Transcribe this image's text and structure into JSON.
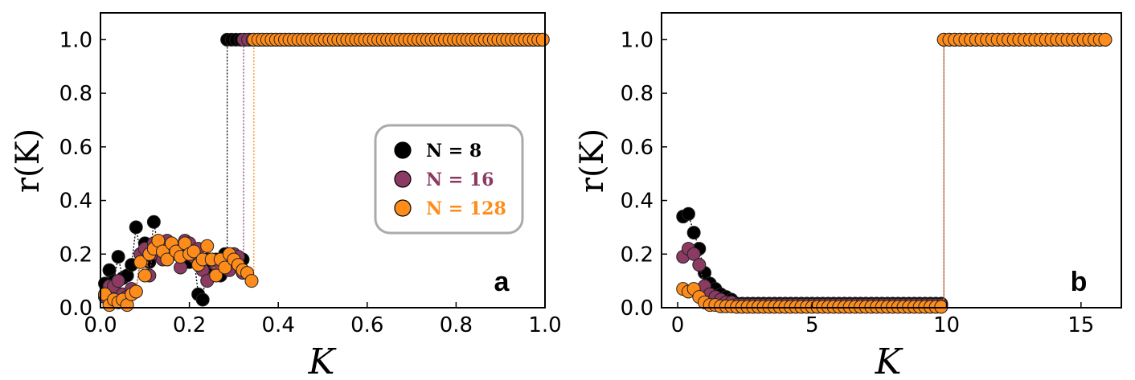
{
  "chart_data": [
    {
      "type": "scatter",
      "panel_label": "a",
      "xlabel": "K",
      "ylabel": "r(K)",
      "xlim": [
        0.0,
        1.0
      ],
      "ylim": [
        0.0,
        1.1
      ],
      "xticks": [
        0.0,
        0.2,
        0.4,
        0.6,
        0.8,
        1.0
      ],
      "xtick_labels": [
        "0.0",
        "0.2",
        "0.4",
        "0.6",
        "0.8",
        "1.0"
      ],
      "yticks": [
        0.0,
        0.2,
        0.4,
        0.6,
        0.8,
        1.0
      ],
      "ytick_labels": [
        "0.0",
        "0.2",
        "0.4",
        "0.6",
        "0.8",
        "1.0"
      ],
      "legend_placement": "center-right",
      "grid": false,
      "series": [
        {
          "name": "N = 8",
          "color": "#000000",
          "x": [
            0.01,
            0.02,
            0.03,
            0.04,
            0.05,
            0.06,
            0.07,
            0.08,
            0.09,
            0.1,
            0.11,
            0.12,
            0.13,
            0.14,
            0.15,
            0.16,
            0.17,
            0.18,
            0.19,
            0.2,
            0.21,
            0.22,
            0.23,
            0.24,
            0.25,
            0.26,
            0.27,
            0.28,
            0.29,
            0.3,
            0.31,
            0.32
          ],
          "y": [
            0.09,
            0.14,
            0.1,
            0.19,
            0.11,
            0.12,
            0.16,
            0.3,
            0.2,
            0.24,
            0.17,
            0.32,
            0.22,
            0.24,
            0.18,
            0.2,
            0.22,
            0.21,
            0.24,
            0.17,
            0.19,
            0.05,
            0.03,
            0.18,
            0.15,
            0.18,
            0.12,
            0.2,
            0.19,
            0.18,
            0.17,
            0.18
          ],
          "jump_x": 0.285,
          "y_after": 1.0
        },
        {
          "name": "N = 16",
          "color": "#8b3a62",
          "x": [
            0.01,
            0.02,
            0.03,
            0.04,
            0.05,
            0.06,
            0.07,
            0.08,
            0.09,
            0.1,
            0.11,
            0.12,
            0.13,
            0.14,
            0.15,
            0.16,
            0.17,
            0.18,
            0.19,
            0.2,
            0.21,
            0.22,
            0.23,
            0.24,
            0.25,
            0.26,
            0.27,
            0.28,
            0.29,
            0.3,
            0.31,
            0.32
          ],
          "y": [
            0.04,
            0.08,
            0.08,
            0.1,
            0.05,
            0.04,
            0.07,
            0.06,
            0.2,
            0.22,
            0.12,
            0.24,
            0.2,
            0.18,
            0.25,
            0.22,
            0.2,
            0.15,
            0.25,
            0.24,
            0.19,
            0.22,
            0.14,
            0.1,
            0.18,
            0.16,
            0.15,
            0.17,
            0.14,
            0.2,
            0.19,
            0.13
          ],
          "jump_x": 0.322,
          "y_after": 1.0
        },
        {
          "name": "N = 128",
          "color": "#ff8c1a",
          "x": [
            0.01,
            0.02,
            0.03,
            0.04,
            0.05,
            0.06,
            0.07,
            0.08,
            0.09,
            0.1,
            0.11,
            0.12,
            0.13,
            0.14,
            0.15,
            0.16,
            0.17,
            0.18,
            0.19,
            0.2,
            0.21,
            0.22,
            0.23,
            0.24,
            0.25,
            0.26,
            0.27,
            0.28,
            0.29,
            0.3,
            0.31,
            0.32,
            0.33,
            0.34
          ],
          "y": [
            0.05,
            0.01,
            0.03,
            0.02,
            0.03,
            0.01,
            0.05,
            0.06,
            0.17,
            0.12,
            0.2,
            0.22,
            0.25,
            0.21,
            0.18,
            0.24,
            0.21,
            0.19,
            0.24,
            0.2,
            0.21,
            0.16,
            0.18,
            0.23,
            0.18,
            0.12,
            0.18,
            0.15,
            0.2,
            0.18,
            0.16,
            0.14,
            0.13,
            0.1
          ],
          "jump_x": 0.345,
          "y_after": 1.0
        }
      ],
      "plateau_x_end": 1.0,
      "plateau_step": 0.01
    },
    {
      "type": "scatter",
      "panel_label": "b",
      "xlabel": "K",
      "ylabel": "r(K)",
      "xlim": [
        -0.6,
        16.5
      ],
      "ylim": [
        0.0,
        1.1
      ],
      "xticks": [
        0,
        5,
        10,
        15
      ],
      "xtick_labels": [
        "0",
        "5",
        "10",
        "15"
      ],
      "yticks": [
        0.0,
        0.2,
        0.4,
        0.6,
        0.8,
        1.0
      ],
      "ytick_labels": [
        "0.0",
        "0.2",
        "0.4",
        "0.6",
        "0.8",
        "1.0"
      ],
      "grid": false,
      "series": [
        {
          "name": "N = 8",
          "color": "#000000",
          "x": [
            0.2,
            0.4,
            0.6,
            0.8,
            1.0,
            1.2,
            1.4,
            1.6,
            1.8,
            2.0
          ],
          "y": [
            0.34,
            0.35,
            0.28,
            0.22,
            0.13,
            0.09,
            0.07,
            0.05,
            0.04,
            0.03
          ],
          "tail_value": 0.015,
          "tail_x_end": 9.8,
          "jump_x": 9.9,
          "y_after": 1.0
        },
        {
          "name": "N = 16",
          "color": "#8b3a62",
          "x": [
            0.2,
            0.4,
            0.6,
            0.8,
            1.0,
            1.2,
            1.4,
            1.6,
            1.8,
            2.0
          ],
          "y": [
            0.19,
            0.22,
            0.2,
            0.16,
            0.08,
            0.05,
            0.04,
            0.03,
            0.02,
            0.02
          ],
          "tail_value": 0.01,
          "tail_x_end": 9.8,
          "jump_x": 9.9,
          "y_after": 1.0
        },
        {
          "name": "N = 128",
          "color": "#ff8c1a",
          "x": [
            0.2,
            0.4,
            0.6,
            0.8,
            1.0,
            1.2,
            1.4,
            1.6,
            1.8,
            2.0
          ],
          "y": [
            0.07,
            0.06,
            0.07,
            0.04,
            0.02,
            0.01,
            0.01,
            0.005,
            0.005,
            0.005
          ],
          "tail_value": 0.003,
          "tail_x_end": 9.8,
          "jump_x": 9.9,
          "y_after": 1.0
        }
      ],
      "plateau_x_end": 16.0,
      "plateau_step": 0.2
    }
  ],
  "legend": {
    "items": [
      {
        "label": "N = 8",
        "color": "#000000",
        "text_color": "#000000"
      },
      {
        "label": "N = 16",
        "color": "#8b3a62",
        "text_color": "#8b3a62"
      },
      {
        "label": "N = 128",
        "color": "#ff8c1a",
        "text_color": "#ff8c1a"
      }
    ]
  }
}
